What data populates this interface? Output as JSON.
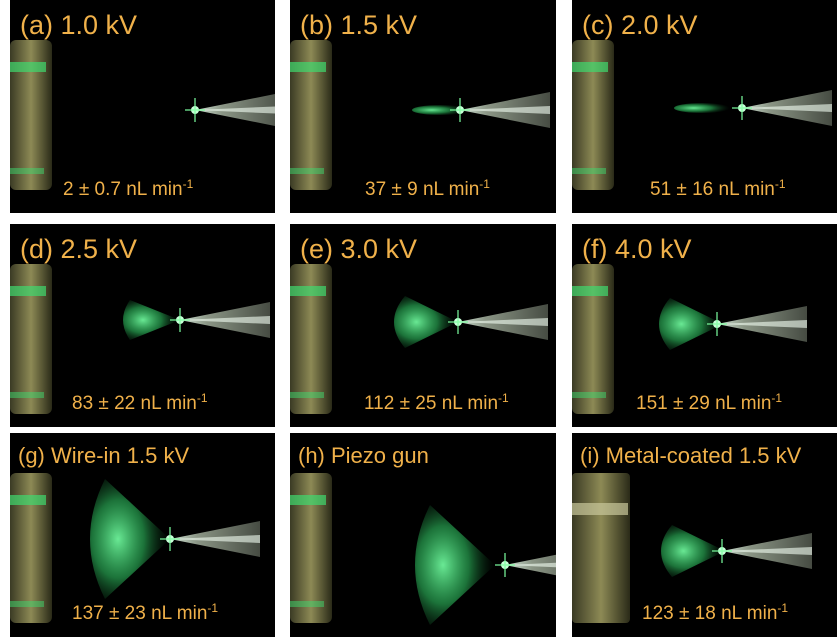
{
  "panels": [
    {
      "label": "(a) 1.0 kV",
      "rate": "2 ± 0.7 nL min",
      "rate_exp": "-1",
      "plume": "none"
    },
    {
      "label": "(b) 1.5 kV",
      "rate": "37 ± 9 nL min",
      "rate_exp": "-1",
      "plume": "jet"
    },
    {
      "label": "(c) 2.0 kV",
      "rate": "51 ± 16 nL min",
      "rate_exp": "-1",
      "plume": "jet-faint"
    },
    {
      "label": "(d) 2.5 kV",
      "rate": "83 ± 22 nL min",
      "rate_exp": "-1",
      "plume": "small-cone"
    },
    {
      "label": "(e) 3.0 kV",
      "rate": "112 ± 25 nL min",
      "rate_exp": "-1",
      "plume": "cone"
    },
    {
      "label": "(f) 4.0 kV",
      "rate": "151 ± 29 nL min",
      "rate_exp": "-1",
      "plume": "cone"
    },
    {
      "label": "(g) Wire-in 1.5 kV",
      "rate": "137 ± 23 nL min",
      "rate_exp": "-1",
      "plume": "wide-cone"
    },
    {
      "label": "(h) Piezo gun",
      "rate": "",
      "rate_exp": "",
      "plume": "wide-cone-low"
    },
    {
      "label": "(i) Metal-coated 1.5 kV",
      "rate": "123 ± 18 nL min",
      "rate_exp": "-1",
      "plume": "cone"
    }
  ],
  "colors": {
    "background": "#000000",
    "text": "#f0b14a",
    "plume": "#3fe07a",
    "glass": "#c9cfc2",
    "electrode": "#6e6a3c"
  }
}
